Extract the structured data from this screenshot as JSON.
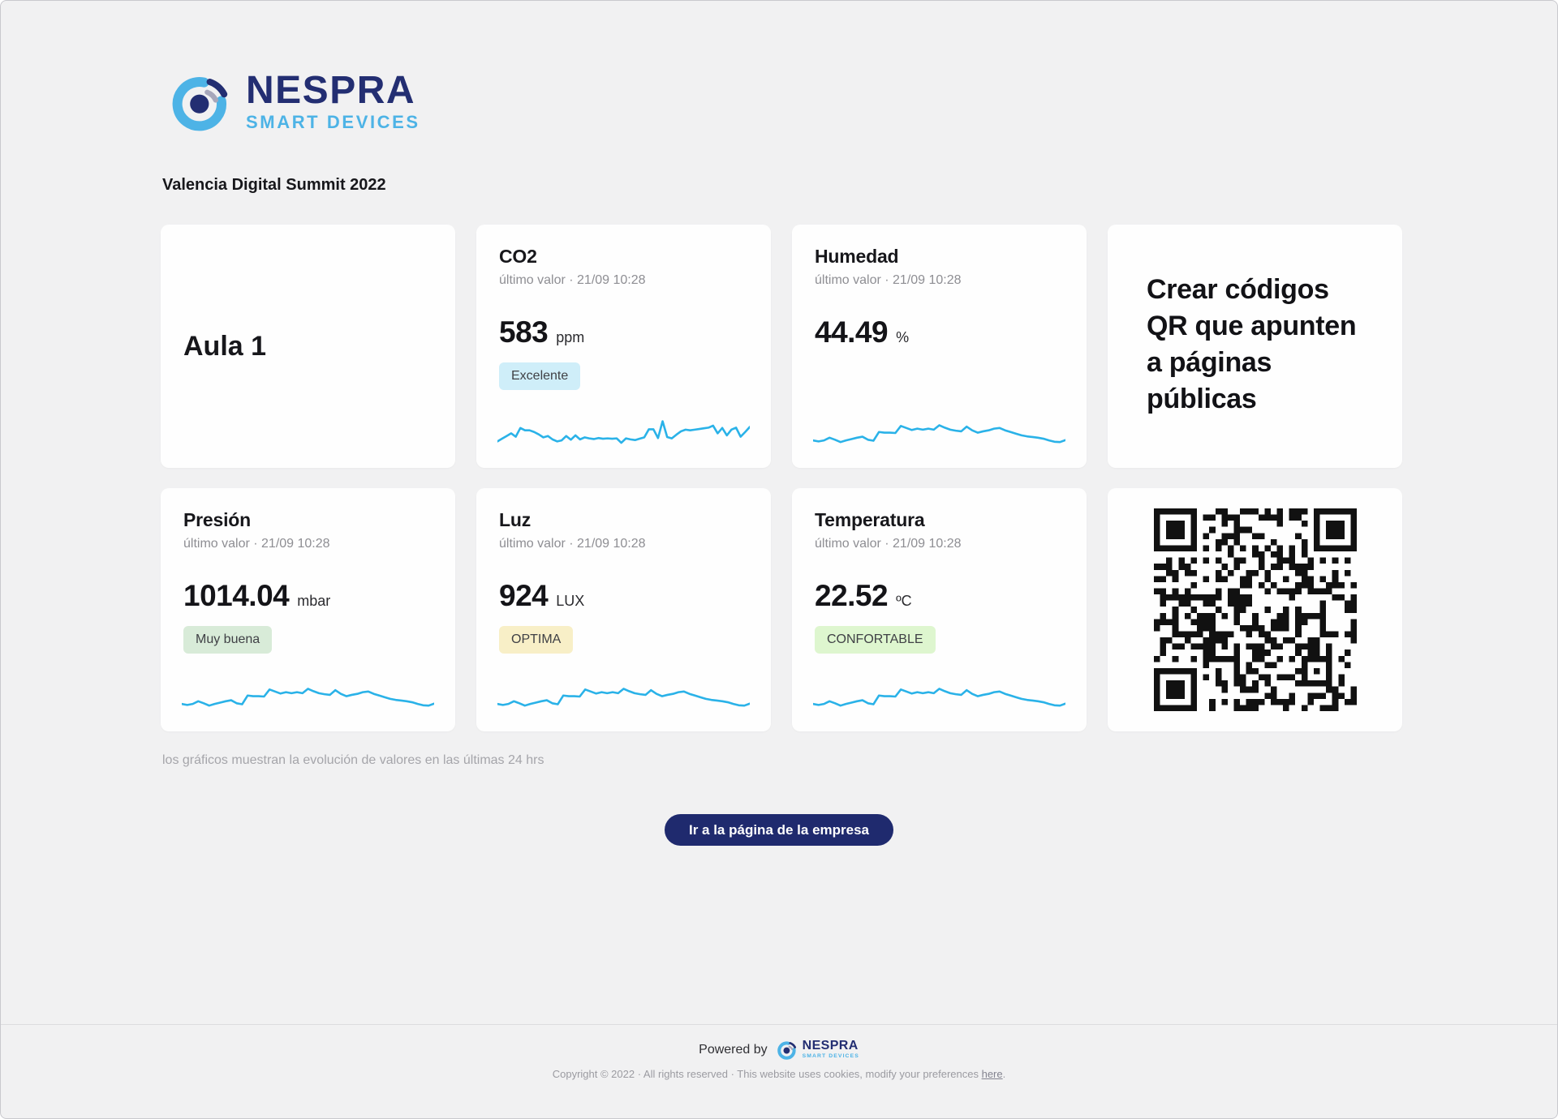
{
  "brand": {
    "name": "NESPRA",
    "tagline": "SMART DEVICES",
    "colors": {
      "navy": "#232e72",
      "light_blue": "#4db3e6",
      "gray_arc": "#a7a7bb"
    }
  },
  "page": {
    "title": "Valencia Digital Summit 2022",
    "background": "#f1f1f2"
  },
  "room_card": {
    "label": "Aula 1"
  },
  "promo_card": {
    "text": "Crear códigos QR que apunten a páginas públicas"
  },
  "sparkline_color": "#2ab2e8",
  "sensors": [
    {
      "id": "co2",
      "title": "CO2",
      "subtitle": "último valor · 21/09 10:28",
      "value": "583",
      "unit": "ppm",
      "badge": {
        "label": "Excelente",
        "bg": "#cfeef9"
      },
      "sparkline": [
        22,
        30,
        38,
        46,
        36,
        62,
        55,
        55,
        50,
        43,
        34,
        38,
        28,
        22,
        25,
        38,
        27,
        40,
        28,
        34,
        31,
        29,
        32,
        30,
        31,
        30,
        31,
        18,
        31,
        28,
        26,
        30,
        34,
        58,
        58,
        32,
        82,
        35,
        31,
        42,
        52,
        57,
        55,
        57,
        59,
        61,
        63,
        69,
        46,
        62,
        40,
        57,
        63,
        36,
        50,
        65
      ]
    },
    {
      "id": "humedad",
      "title": "Humedad",
      "subtitle": "último valor · 21/09 10:28",
      "value": "44.49",
      "unit": "%",
      "badge": null,
      "sparkline": [
        25,
        22,
        25,
        33,
        27,
        20,
        25,
        29,
        33,
        36,
        27,
        24,
        50,
        48,
        48,
        47,
        68,
        62,
        56,
        60,
        57,
        60,
        57,
        70,
        63,
        57,
        54,
        52,
        66,
        55,
        48,
        52,
        55,
        60,
        62,
        55,
        50,
        45,
        40,
        37,
        35,
        33,
        30,
        25,
        21,
        20,
        26
      ]
    },
    {
      "id": "presion",
      "title": "Presión",
      "subtitle": "último valor · 21/09 10:28",
      "value": "1014.04",
      "unit": "mbar",
      "badge": {
        "label": "Muy buena",
        "bg": "#d8ebd8"
      },
      "sparkline": [
        25,
        22,
        25,
        33,
        27,
        20,
        25,
        29,
        33,
        36,
        27,
        24,
        50,
        48,
        48,
        47,
        68,
        62,
        56,
        60,
        57,
        60,
        57,
        70,
        63,
        57,
        54,
        52,
        66,
        55,
        48,
        52,
        55,
        60,
        62,
        55,
        50,
        45,
        40,
        37,
        35,
        33,
        30,
        25,
        21,
        20,
        26
      ]
    },
    {
      "id": "luz",
      "title": "Luz",
      "subtitle": "último valor · 21/09 10:28",
      "value": "924",
      "unit": "LUX",
      "badge": {
        "label": "OPTIMA",
        "bg": "#f8efc7"
      },
      "sparkline": [
        25,
        22,
        25,
        33,
        27,
        20,
        25,
        29,
        33,
        36,
        27,
        24,
        50,
        48,
        48,
        47,
        68,
        62,
        56,
        60,
        57,
        60,
        57,
        70,
        63,
        57,
        54,
        52,
        66,
        55,
        48,
        52,
        55,
        60,
        62,
        55,
        50,
        45,
        40,
        37,
        35,
        33,
        30,
        25,
        21,
        20,
        26
      ]
    },
    {
      "id": "temperatura",
      "title": "Temperatura",
      "subtitle": "último valor · 21/09 10:28",
      "value": "22.52",
      "unit": "ºC",
      "badge": {
        "label": "CONFORTABLE",
        "bg": "#def6cf"
      },
      "sparkline": [
        25,
        22,
        25,
        33,
        27,
        20,
        25,
        29,
        33,
        36,
        27,
        24,
        50,
        48,
        48,
        47,
        68,
        62,
        56,
        60,
        57,
        60,
        57,
        70,
        63,
        57,
        54,
        52,
        66,
        55,
        48,
        52,
        55,
        60,
        62,
        55,
        50,
        45,
        40,
        37,
        35,
        33,
        30,
        25,
        21,
        20,
        26
      ]
    }
  ],
  "qr_card": {
    "modules": 33,
    "seed": 7,
    "dark_color": "#111111"
  },
  "caption": "los gráficos muestran la evolución de valores en las últimas 24 hrs",
  "cta_button": {
    "label": "Ir a la página de la empresa",
    "bg": "#1f2a6e"
  },
  "footer": {
    "powered_by": "Powered by",
    "copyright": "Copyright © 2022 · All rights reserved · This website uses cookies, modify your preferences ",
    "link_label": "here",
    "period": "."
  }
}
